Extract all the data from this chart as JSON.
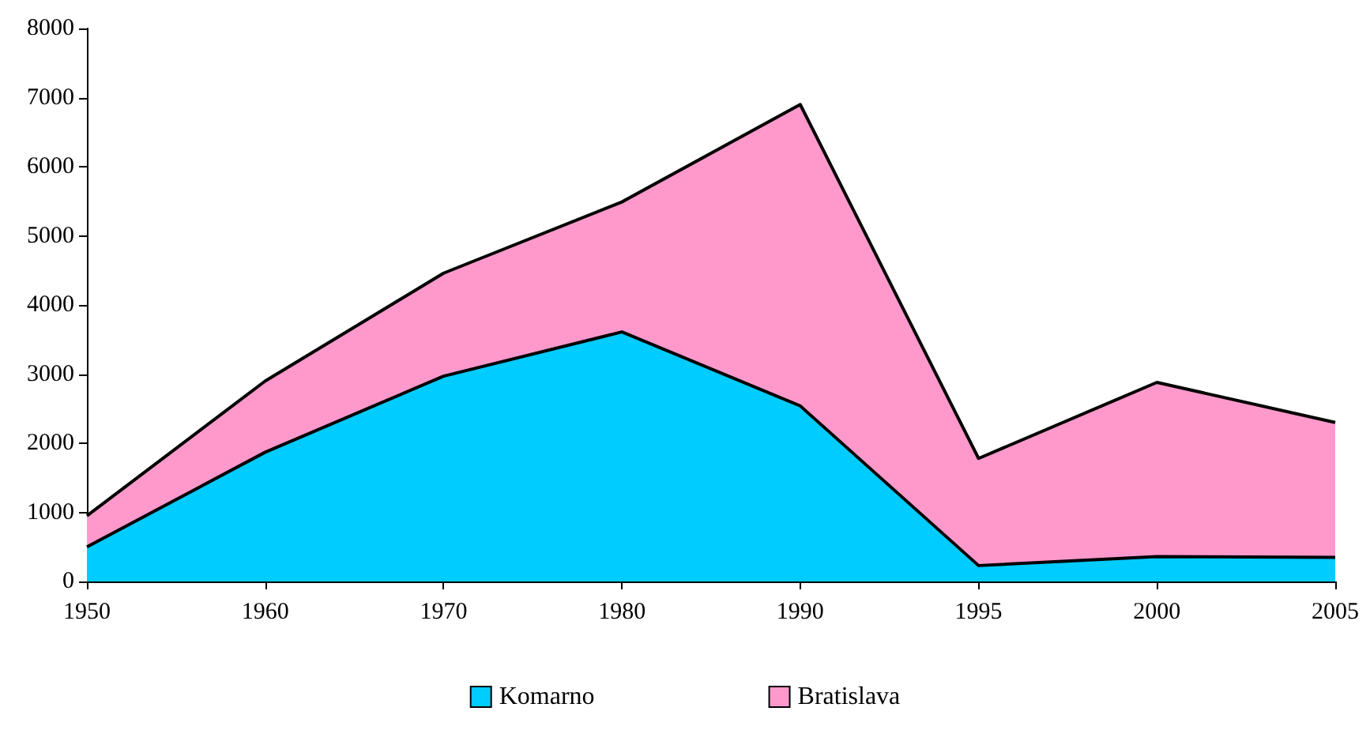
{
  "chart_data": {
    "type": "area",
    "stacked": true,
    "categories": [
      "1950",
      "1960",
      "1970",
      "1980",
      "1990",
      "1995",
      "2000",
      "2005"
    ],
    "series": [
      {
        "name": "Komarno",
        "color": "#00ccff",
        "values": [
          500,
          1870,
          2970,
          3610,
          2540,
          230,
          360,
          350
        ]
      },
      {
        "name": "Bratislava",
        "color": "#ff99cc",
        "values": [
          450,
          1030,
          1490,
          1880,
          4360,
          1550,
          2520,
          1950
        ]
      }
    ],
    "ylim": [
      0,
      8000
    ],
    "yticks": [
      0,
      1000,
      2000,
      3000,
      4000,
      5000,
      6000,
      7000,
      8000
    ],
    "grid": false,
    "legend": "bottom",
    "marker": "none",
    "line_style": "solid"
  }
}
